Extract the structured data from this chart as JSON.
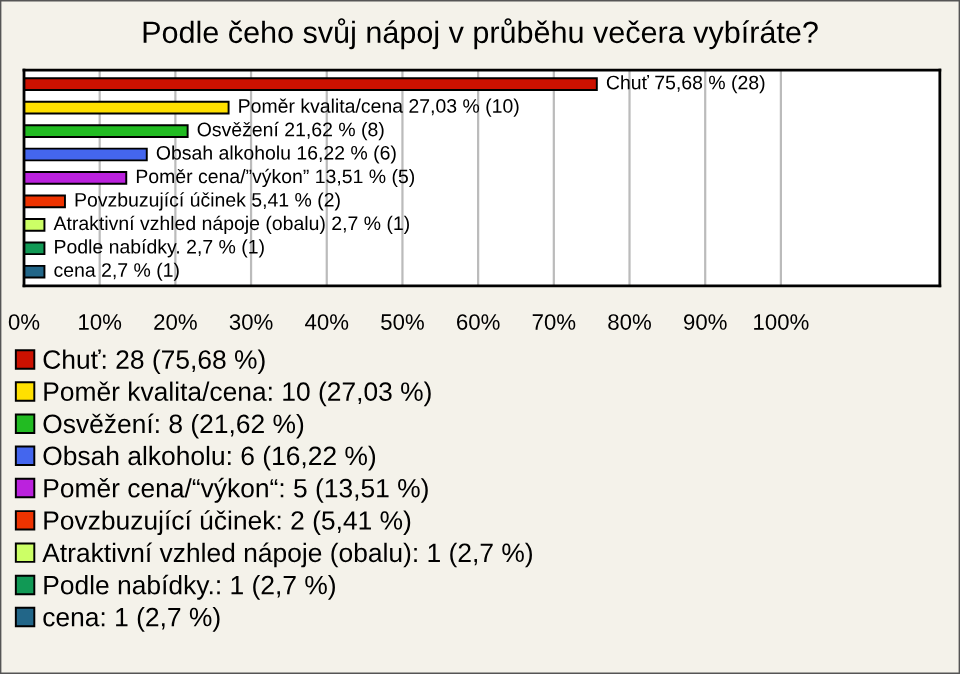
{
  "chart_data": {
    "type": "bar",
    "orientation": "horizontal",
    "title": "Podle čeho svůj nápoj v průběhu večera vybíráte?",
    "categories": [
      null,
      null,
      null,
      null,
      null,
      null,
      null,
      null,
      null
    ],
    "xlim": [
      0,
      121
    ],
    "xticks": [
      {
        "value": 0,
        "label": "0%"
      },
      {
        "value": 10,
        "label": "10%"
      },
      {
        "value": 20,
        "label": "20%"
      },
      {
        "value": 30,
        "label": "30%"
      },
      {
        "value": 40,
        "label": "40%"
      },
      {
        "value": 50,
        "label": "50%"
      },
      {
        "value": 60,
        "label": "60%"
      },
      {
        "value": 70,
        "label": "70%"
      },
      {
        "value": 80,
        "label": "80%"
      },
      {
        "value": 90,
        "label": "90%"
      },
      {
        "value": 100,
        "label": "100%"
      }
    ],
    "grid": "x",
    "legend": "bottom",
    "tick_labels": "x",
    "series": [
      {
        "name": "Chuť: 28 (75,68 %)",
        "color": "#cc1100",
        "values": [
          75.68,
          null,
          null,
          null,
          null,
          null,
          null,
          null,
          null
        ],
        "value_labels": [
          "Chuť 75,68 % (28)",
          null,
          null,
          null,
          null,
          null,
          null,
          null,
          null
        ]
      },
      {
        "name": "Poměr kvalita/cena: 10 (27,03 %)",
        "color": "#ffe000",
        "values": [
          null,
          27.03,
          null,
          null,
          null,
          null,
          null,
          null,
          null
        ],
        "value_labels": [
          null,
          "Poměr kvalita/cena 27,03 % (10)",
          null,
          null,
          null,
          null,
          null,
          null,
          null
        ]
      },
      {
        "name": "Osvěžení: 8 (21,62 %)",
        "color": "#22bb22",
        "values": [
          null,
          null,
          21.62,
          null,
          null,
          null,
          null,
          null,
          null
        ],
        "value_labels": [
          null,
          null,
          "Osvěžení 21,62 % (8)",
          null,
          null,
          null,
          null,
          null,
          null
        ]
      },
      {
        "name": "Obsah alkoholu: 6 (16,22 %)",
        "color": "#4466ee",
        "values": [
          null,
          null,
          null,
          16.22,
          null,
          null,
          null,
          null,
          null
        ],
        "value_labels": [
          null,
          null,
          null,
          "Obsah alkoholu 16,22 % (6)",
          null,
          null,
          null,
          null,
          null
        ]
      },
      {
        "name": "Poměr cena/“výkon“: 5 (13,51 %)",
        "color": "#bb22dd",
        "values": [
          null,
          null,
          null,
          null,
          13.51,
          null,
          null,
          null,
          null
        ],
        "value_labels": [
          null,
          null,
          null,
          null,
          "Poměr cena/”výkon” 13,51 % (5)",
          null,
          null,
          null,
          null
        ]
      },
      {
        "name": "Povzbuzující účinek: 2 (5,41 %)",
        "color": "#ee3300",
        "values": [
          null,
          null,
          null,
          null,
          null,
          5.41,
          null,
          null,
          null
        ],
        "value_labels": [
          null,
          null,
          null,
          null,
          null,
          "Povzbuzující účinek 5,41 % (2)",
          null,
          null,
          null
        ]
      },
      {
        "name": "Atraktivní vzhled nápoje (obalu): 1 (2,7 %)",
        "color": "#ccff66",
        "values": [
          null,
          null,
          null,
          null,
          null,
          null,
          2.7,
          null,
          null
        ],
        "value_labels": [
          null,
          null,
          null,
          null,
          null,
          null,
          "Atraktivní vzhled nápoje (obalu) 2,7 % (1)",
          null,
          null
        ]
      },
      {
        "name": "Podle nabídky.: 1 (2,7 %)",
        "color": "#119955",
        "values": [
          null,
          null,
          null,
          null,
          null,
          null,
          null,
          2.7,
          null
        ],
        "value_labels": [
          null,
          null,
          null,
          null,
          null,
          null,
          null,
          "Podle nabídky. 2,7 % (1)",
          null
        ]
      },
      {
        "name": "cena: 1 (2,7 %)",
        "color": "#226688",
        "values": [
          null,
          null,
          null,
          null,
          null,
          null,
          null,
          null,
          2.7
        ],
        "value_labels": [
          null,
          null,
          null,
          null,
          null,
          null,
          null,
          null,
          "cena 2,7 % (1)"
        ]
      }
    ]
  }
}
